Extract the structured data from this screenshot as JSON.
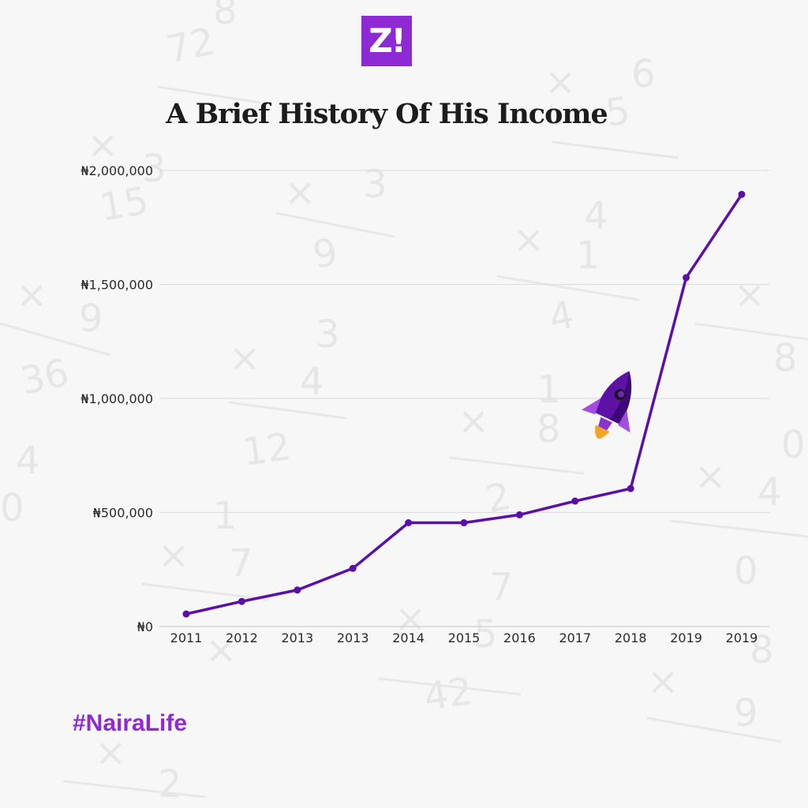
{
  "logo": {
    "text": "Z!",
    "color": "#8e2ad3"
  },
  "hashtag": "#NairaLife",
  "rocket_icon": "rocket-icon",
  "chart_data": {
    "type": "line",
    "title": "A Brief History Of His Income",
    "xlabel": "",
    "ylabel": "",
    "categories": [
      "2011",
      "2012",
      "2013",
      "2013",
      "2014",
      "2015",
      "2016",
      "2017",
      "2018",
      "2019",
      "2019"
    ],
    "series": [
      {
        "values": [
          55000,
          110000,
          160000,
          255000,
          455000,
          455000,
          490000,
          550000,
          605000,
          1530000,
          1895000
        ],
        "color": "#5a0fa8"
      }
    ],
    "yticks": [
      "₦0",
      "₦500,000",
      "₦1,000,000",
      "₦1,500,000",
      "₦2,000,000"
    ],
    "ylim": [
      0,
      2000000
    ],
    "grid": true,
    "legend": "none"
  }
}
